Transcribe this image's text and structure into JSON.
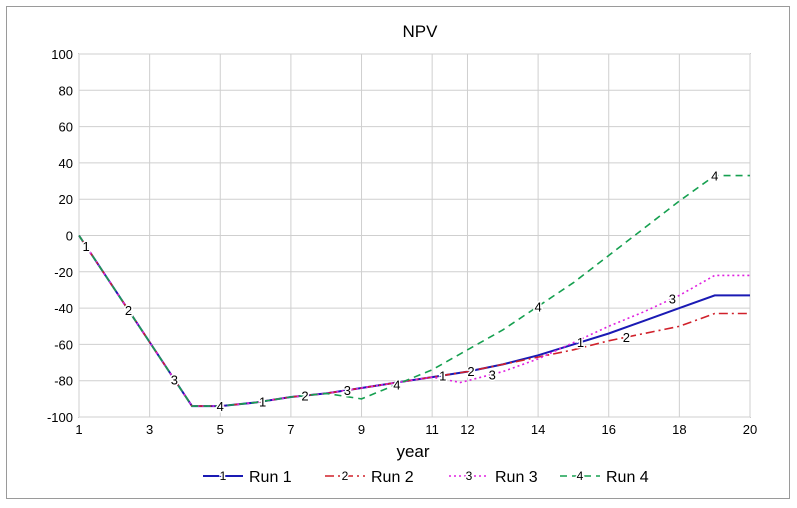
{
  "chart_data": {
    "type": "line",
    "title": "NPV",
    "xlabel": "year",
    "ylabel": "",
    "xlim": [
      1,
      20
    ],
    "ylim": [
      -100,
      100
    ],
    "x_ticks": [
      1,
      3,
      5,
      7,
      9,
      11,
      12,
      14,
      16,
      18,
      20
    ],
    "y_ticks": [
      100,
      80,
      60,
      40,
      20,
      0,
      -20,
      -40,
      -60,
      -80,
      -100
    ],
    "grid": true,
    "legend_position": "bottom",
    "series": [
      {
        "name": "Run 1",
        "marker": "1",
        "color": "#1a1ab4",
        "dash": "solid",
        "x": [
          1,
          4.2,
          5,
          6,
          7,
          8,
          9,
          10,
          11,
          12,
          13,
          14,
          15,
          16,
          17,
          18,
          19,
          20
        ],
        "y": [
          0,
          -94,
          -94,
          -92,
          -89,
          -87,
          -84,
          -81,
          -78,
          -75,
          -71,
          -66,
          -60,
          -54,
          -47,
          -40,
          -33,
          -33
        ],
        "marker_x": [
          1.2,
          6.2,
          11.3,
          15.2
        ]
      },
      {
        "name": "Run 2",
        "marker": "2",
        "color": "#d0202a",
        "dash": "dashdot",
        "x": [
          1,
          4.2,
          5,
          6,
          7,
          8,
          9,
          10,
          11,
          12,
          13,
          14,
          15,
          16,
          17,
          18,
          19,
          20
        ],
        "y": [
          0,
          -94,
          -94,
          -92,
          -89,
          -87,
          -84,
          -81,
          -78,
          -75,
          -71,
          -67,
          -63,
          -58,
          -54,
          -50,
          -43,
          -43
        ],
        "marker_x": [
          2.4,
          7.4,
          12.1,
          16.5
        ]
      },
      {
        "name": "Run 3",
        "marker": "3",
        "color": "#e020e0",
        "dash": "dotted",
        "x": [
          1,
          4.2,
          5,
          6,
          7,
          8,
          9,
          10,
          11,
          11.8,
          12,
          13,
          14,
          15,
          16,
          17,
          18,
          19,
          20
        ],
        "y": [
          0,
          -94,
          -94,
          -92,
          -89,
          -87,
          -84,
          -81,
          -78,
          -81,
          -80,
          -75,
          -68,
          -59,
          -50,
          -42,
          -33,
          -22,
          -22
        ],
        "marker_x": [
          3.7,
          8.6,
          12.7,
          17.8
        ]
      },
      {
        "name": "Run 4",
        "marker": "4",
        "color": "#16a050",
        "dash": "dashed",
        "x": [
          1,
          4.2,
          5,
          6,
          7,
          8,
          9,
          10,
          11,
          12,
          13,
          14,
          15,
          16,
          17,
          18,
          19,
          20
        ],
        "y": [
          0,
          -94,
          -94,
          -92,
          -89,
          -87,
          -90,
          -82,
          -74,
          -63,
          -52,
          -39,
          -26,
          -11,
          4,
          19,
          33,
          33
        ],
        "segment_breaks": [
          [
            8.9
          ]
        ],
        "marker_x": [
          5,
          10,
          14,
          19
        ]
      }
    ]
  }
}
